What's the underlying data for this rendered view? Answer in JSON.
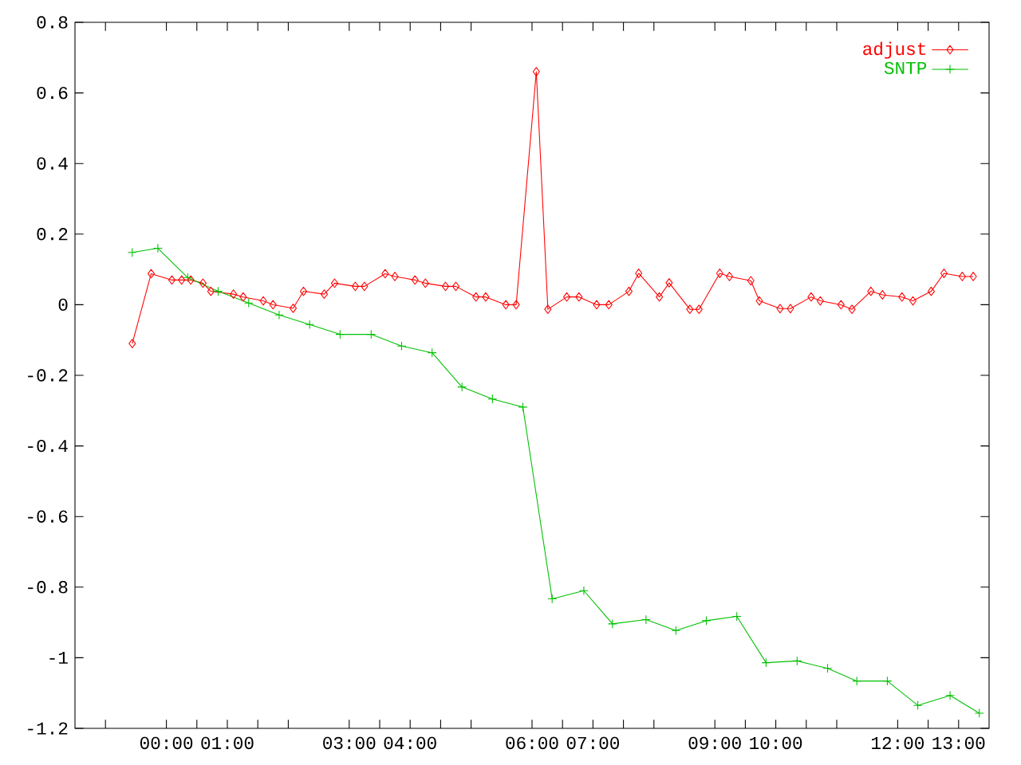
{
  "chart_data": {
    "type": "line",
    "xlim": [
      -1.5,
      13.5
    ],
    "ylim": [
      -1.2,
      0.8
    ],
    "xticks": [
      {
        "value": 0,
        "label": "00:00"
      },
      {
        "value": 1,
        "label": "01:00"
      },
      {
        "value": 3,
        "label": "03:00"
      },
      {
        "value": 4,
        "label": "04:00"
      },
      {
        "value": 6,
        "label": "06:00"
      },
      {
        "value": 7,
        "label": "07:00"
      },
      {
        "value": 9,
        "label": "09:00"
      },
      {
        "value": 10,
        "label": "10:00"
      },
      {
        "value": 12,
        "label": "12:00"
      },
      {
        "value": 13,
        "label": "13:00"
      },
      {
        "value": -1,
        "label": null
      },
      {
        "value": 0.5,
        "label": null
      },
      {
        "value": 1.5,
        "label": null
      },
      {
        "value": 2,
        "label": null
      },
      {
        "value": 3.5,
        "label": null
      },
      {
        "value": 4.5,
        "label": null
      },
      {
        "value": 5,
        "label": null
      },
      {
        "value": 6.5,
        "label": null
      },
      {
        "value": 7.5,
        "label": null
      },
      {
        "value": 8,
        "label": null
      },
      {
        "value": 9.5,
        "label": null
      },
      {
        "value": 10.5,
        "label": null
      },
      {
        "value": 11,
        "label": null
      },
      {
        "value": 12.5,
        "label": null
      }
    ],
    "yticks": [
      -1.2,
      -1,
      -0.8,
      -0.6,
      -0.4,
      -0.2,
      0,
      0.2,
      0.4,
      0.6,
      0.8
    ],
    "legend": "top right",
    "grid": false,
    "line_style": "solid",
    "series": [
      {
        "name": "adjust",
        "color": "#ff0000",
        "marker": "diamond",
        "x": [
          -0.56,
          -0.25,
          0.09,
          0.25,
          0.4,
          0.6,
          0.73,
          1.1,
          1.26,
          1.59,
          1.75,
          2.08,
          2.25,
          2.59,
          2.76,
          3.1,
          3.25,
          3.59,
          3.75,
          4.08,
          4.25,
          4.58,
          4.75,
          5.08,
          5.24,
          5.57,
          5.74,
          6.07,
          6.26,
          6.57,
          6.77,
          7.06,
          7.26,
          7.59,
          7.75,
          8.09,
          8.25,
          8.59,
          8.74,
          9.08,
          9.24,
          9.59,
          9.73,
          10.07,
          10.24,
          10.58,
          10.73,
          11.07,
          11.25,
          11.56,
          11.75,
          12.07,
          12.25,
          12.55,
          12.76,
          13.06,
          13.24
        ],
        "values": [
          -0.11,
          0.088,
          0.07,
          0.07,
          0.07,
          0.061,
          0.038,
          0.03,
          0.022,
          0.011,
          0.0,
          -0.01,
          0.038,
          0.03,
          0.061,
          0.052,
          0.052,
          0.088,
          0.08,
          0.07,
          0.061,
          0.052,
          0.052,
          0.022,
          0.022,
          0.0,
          0.0,
          0.66,
          -0.013,
          0.022,
          0.022,
          0.0,
          0.0,
          0.038,
          0.089,
          0.022,
          0.062,
          -0.013,
          -0.013,
          0.089,
          0.08,
          0.068,
          0.011,
          -0.011,
          -0.011,
          0.022,
          0.011,
          0.0,
          -0.013,
          0.038,
          0.028,
          0.022,
          0.011,
          0.038,
          0.089,
          0.08,
          0.08
        ]
      },
      {
        "name": "SNTP",
        "color": "#00c000",
        "marker": "cross",
        "x": [
          -0.56,
          -0.14,
          0.35,
          0.85,
          1.35,
          1.85,
          2.35,
          2.85,
          3.36,
          3.86,
          4.36,
          4.85,
          5.35,
          5.85,
          6.33,
          6.85,
          7.32,
          7.87,
          8.36,
          8.86,
          9.36,
          9.84,
          10.35,
          10.85,
          11.33,
          11.83,
          12.33,
          12.86,
          13.34
        ],
        "values": [
          0.148,
          0.16,
          0.077,
          0.038,
          0.005,
          -0.029,
          -0.056,
          -0.084,
          -0.084,
          -0.117,
          -0.136,
          -0.233,
          -0.267,
          -0.29,
          -0.833,
          -0.81,
          -0.904,
          -0.892,
          -0.923,
          -0.895,
          -0.883,
          -1.014,
          -1.009,
          -1.03,
          -1.066,
          -1.066,
          -1.135,
          -1.107,
          -1.157
        ]
      }
    ]
  }
}
